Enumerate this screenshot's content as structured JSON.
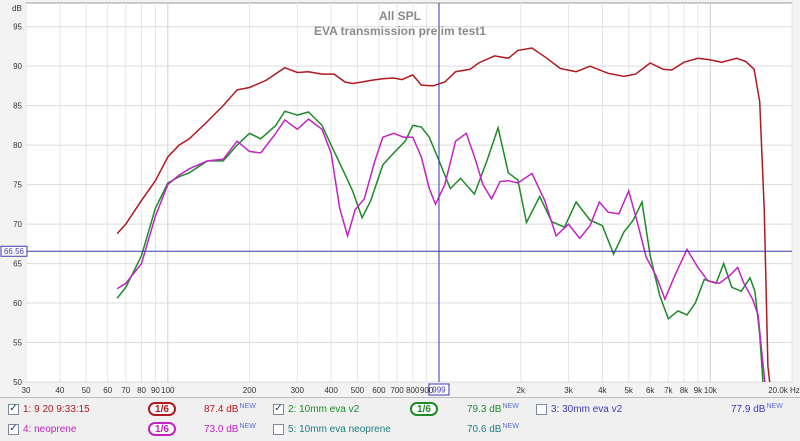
{
  "chart_data": {
    "type": "line",
    "title": "All SPL",
    "subtitle": "EVA transmission prelim test1",
    "ylabel": "dB",
    "xunit": "Hz",
    "xscale": "log",
    "xlim": [
      30,
      20000
    ],
    "ylim": [
      50,
      98
    ],
    "x_ticks": [
      {
        "v": 30,
        "t": "30"
      },
      {
        "v": 40,
        "t": "40"
      },
      {
        "v": 50,
        "t": "50"
      },
      {
        "v": 60,
        "t": "60"
      },
      {
        "v": 70,
        "t": "70"
      },
      {
        "v": 80,
        "t": "80"
      },
      {
        "v": 90,
        "t": "90"
      },
      {
        "v": 100,
        "t": "100"
      },
      {
        "v": 200,
        "t": "200"
      },
      {
        "v": 300,
        "t": "300"
      },
      {
        "v": 400,
        "t": "400"
      },
      {
        "v": 500,
        "t": "500"
      },
      {
        "v": 600,
        "t": "600"
      },
      {
        "v": 700,
        "t": "700"
      },
      {
        "v": 800,
        "t": "800"
      },
      {
        "v": 900,
        "t": "900"
      },
      {
        "v": 2000,
        "t": "2k"
      },
      {
        "v": 3000,
        "t": "3k"
      },
      {
        "v": 4000,
        "t": "4k"
      },
      {
        "v": 5000,
        "t": "5k"
      },
      {
        "v": 6000,
        "t": "6k"
      },
      {
        "v": 7000,
        "t": "7k"
      },
      {
        "v": 8000,
        "t": "8k"
      },
      {
        "v": 9000,
        "t": "9k"
      },
      {
        "v": 10000,
        "t": "10k"
      },
      {
        "v": 20000,
        "t": "20.0k Hz"
      }
    ],
    "y_ticks": [
      50,
      55,
      60,
      65,
      70,
      75,
      80,
      85,
      90,
      95
    ],
    "cursor": {
      "x": 999,
      "x_label": "999",
      "y": 66.56,
      "y_label": "66.56"
    },
    "grid": true,
    "series": [
      {
        "name": "1: 9 20 9:33:15",
        "color": "#b0191f",
        "points": [
          [
            65,
            68.8
          ],
          [
            70,
            70
          ],
          [
            80,
            73
          ],
          [
            90,
            75.5
          ],
          [
            100,
            78.5
          ],
          [
            110,
            80
          ],
          [
            120,
            80.8
          ],
          [
            140,
            83
          ],
          [
            160,
            85
          ],
          [
            180,
            87
          ],
          [
            200,
            87.3
          ],
          [
            230,
            88.2
          ],
          [
            270,
            89.8
          ],
          [
            300,
            89.2
          ],
          [
            330,
            89.3
          ],
          [
            370,
            89
          ],
          [
            410,
            89
          ],
          [
            450,
            88
          ],
          [
            480,
            87.8
          ],
          [
            520,
            88
          ],
          [
            560,
            88.2
          ],
          [
            620,
            88.4
          ],
          [
            680,
            88.5
          ],
          [
            730,
            88.3
          ],
          [
            800,
            88.9
          ],
          [
            860,
            87.6
          ],
          [
            950,
            87.5
          ],
          [
            1050,
            88
          ],
          [
            1150,
            89.3
          ],
          [
            1300,
            89.6
          ],
          [
            1400,
            90.4
          ],
          [
            1600,
            91.3
          ],
          [
            1800,
            91
          ],
          [
            1950,
            92
          ],
          [
            2200,
            92.3
          ],
          [
            2500,
            91
          ],
          [
            2800,
            89.7
          ],
          [
            3200,
            89.3
          ],
          [
            3600,
            90
          ],
          [
            4200,
            89.1
          ],
          [
            4800,
            88.7
          ],
          [
            5300,
            89
          ],
          [
            6000,
            90.4
          ],
          [
            6700,
            89.6
          ],
          [
            7200,
            89.5
          ],
          [
            8000,
            90.5
          ],
          [
            9000,
            91
          ],
          [
            10000,
            90.8
          ],
          [
            11000,
            90.5
          ],
          [
            12500,
            91
          ],
          [
            13500,
            90.6
          ],
          [
            14500,
            89.6
          ],
          [
            15200,
            85.5
          ],
          [
            15800,
            72
          ],
          [
            16300,
            52
          ],
          [
            16800,
            48
          ]
        ]
      },
      {
        "name": "2: 10mm eva v2",
        "color": "#1e8a28",
        "points": [
          [
            65,
            60.6
          ],
          [
            70,
            62
          ],
          [
            80,
            66
          ],
          [
            90,
            72
          ],
          [
            100,
            75.2
          ],
          [
            110,
            76
          ],
          [
            120,
            76.5
          ],
          [
            140,
            78
          ],
          [
            160,
            78
          ],
          [
            180,
            80
          ],
          [
            200,
            81.5
          ],
          [
            220,
            80.8
          ],
          [
            250,
            82.5
          ],
          [
            270,
            84.3
          ],
          [
            300,
            83.8
          ],
          [
            330,
            84.2
          ],
          [
            370,
            82.5
          ],
          [
            400,
            80
          ],
          [
            440,
            77
          ],
          [
            480,
            74.2
          ],
          [
            520,
            70.8
          ],
          [
            560,
            73
          ],
          [
            620,
            77.5
          ],
          [
            680,
            79
          ],
          [
            750,
            80.5
          ],
          [
            800,
            82.5
          ],
          [
            860,
            82.3
          ],
          [
            920,
            81
          ],
          [
            1000,
            78
          ],
          [
            1100,
            74.5
          ],
          [
            1200,
            75.8
          ],
          [
            1350,
            73.8
          ],
          [
            1500,
            78
          ],
          [
            1650,
            82.2
          ],
          [
            1800,
            76.5
          ],
          [
            1950,
            75.6
          ],
          [
            2100,
            70.2
          ],
          [
            2350,
            73.5
          ],
          [
            2600,
            70.3
          ],
          [
            2900,
            69.6
          ],
          [
            3200,
            72.8
          ],
          [
            3600,
            70.5
          ],
          [
            4000,
            69.8
          ],
          [
            4400,
            66.2
          ],
          [
            4800,
            69
          ],
          [
            5200,
            70.5
          ],
          [
            5600,
            72.8
          ],
          [
            6000,
            66
          ],
          [
            6500,
            61
          ],
          [
            7000,
            58
          ],
          [
            7600,
            59
          ],
          [
            8200,
            58.5
          ],
          [
            8800,
            60
          ],
          [
            9500,
            63
          ],
          [
            10500,
            62.5
          ],
          [
            11200,
            65
          ],
          [
            12000,
            62
          ],
          [
            13000,
            61.5
          ],
          [
            14000,
            63.2
          ],
          [
            14600,
            61.5
          ],
          [
            15200,
            56
          ],
          [
            15700,
            49
          ]
        ]
      },
      {
        "name": "4: neoprene",
        "color": "#c223c2",
        "points": [
          [
            65,
            61.8
          ],
          [
            70,
            62.5
          ],
          [
            80,
            65
          ],
          [
            90,
            71
          ],
          [
            100,
            75
          ],
          [
            110,
            76.2
          ],
          [
            120,
            77
          ],
          [
            140,
            78
          ],
          [
            160,
            78.2
          ],
          [
            180,
            80.5
          ],
          [
            200,
            79.2
          ],
          [
            220,
            79
          ],
          [
            250,
            81.5
          ],
          [
            270,
            83.2
          ],
          [
            300,
            82
          ],
          [
            330,
            83.3
          ],
          [
            370,
            82
          ],
          [
            400,
            79
          ],
          [
            430,
            72
          ],
          [
            460,
            68.5
          ],
          [
            490,
            71.8
          ],
          [
            530,
            73.2
          ],
          [
            580,
            78
          ],
          [
            620,
            81
          ],
          [
            680,
            81.5
          ],
          [
            740,
            81
          ],
          [
            800,
            81
          ],
          [
            860,
            78.5
          ],
          [
            920,
            74.5
          ],
          [
            970,
            72.5
          ],
          [
            1050,
            75
          ],
          [
            1150,
            80.5
          ],
          [
            1260,
            81.5
          ],
          [
            1360,
            78.2
          ],
          [
            1450,
            75
          ],
          [
            1560,
            73.2
          ],
          [
            1680,
            75.4
          ],
          [
            1800,
            75.5
          ],
          [
            1950,
            75.2
          ],
          [
            2200,
            76.4
          ],
          [
            2450,
            73
          ],
          [
            2700,
            68.5
          ],
          [
            3000,
            70
          ],
          [
            3300,
            68.2
          ],
          [
            3600,
            69.8
          ],
          [
            3900,
            72.8
          ],
          [
            4200,
            71.5
          ],
          [
            4600,
            71.3
          ],
          [
            5000,
            74.2
          ],
          [
            5400,
            70
          ],
          [
            5800,
            65.8
          ],
          [
            6300,
            63.5
          ],
          [
            6800,
            60.5
          ],
          [
            7400,
            63.5
          ],
          [
            8200,
            66.8
          ],
          [
            9000,
            64.5
          ],
          [
            9800,
            62.8
          ],
          [
            10800,
            62.5
          ],
          [
            11800,
            63.5
          ],
          [
            12600,
            64.5
          ],
          [
            13300,
            62.5
          ],
          [
            14300,
            60.5
          ],
          [
            15000,
            58.5
          ],
          [
            15500,
            53.5
          ],
          [
            16000,
            49
          ]
        ]
      }
    ]
  },
  "legend": [
    {
      "label": "1: 9 20 9:33:15",
      "checked": true,
      "smooth": "1/6",
      "value": "87.4 dB",
      "badge": "NEW",
      "color": "#b0191f"
    },
    {
      "label": "2: 10mm eva v2",
      "checked": true,
      "smooth": "1/6",
      "value": "79.3 dB",
      "badge": "NEW",
      "color": "#1e8a28"
    },
    {
      "label": "3: 30mm eva v2",
      "checked": false,
      "value": "77.9 dB",
      "badge": "NEW",
      "color": "#3b3bb8"
    },
    {
      "label": "4: neoprene",
      "checked": true,
      "smooth": "1/6",
      "value": "73.0 dB",
      "badge": "NEW",
      "color": "#c223c2"
    },
    {
      "label": "5: 10mm eva neoprene",
      "checked": false,
      "value": "70.6 dB",
      "badge": "NEW",
      "color": "#1f7f7f"
    }
  ]
}
